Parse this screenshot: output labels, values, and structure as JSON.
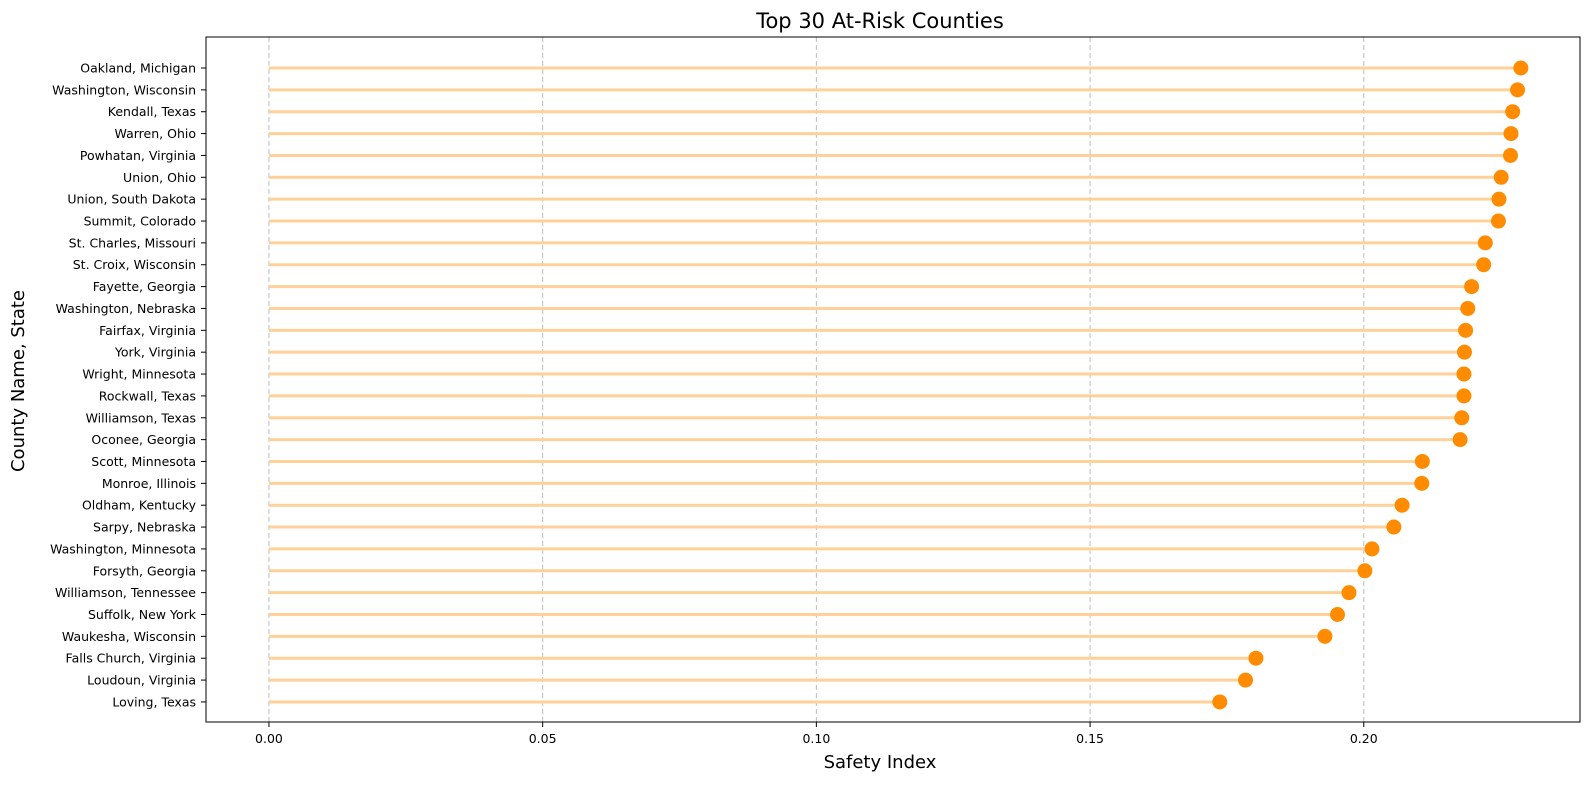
{
  "chart_data": {
    "type": "lollipop",
    "orientation": "horizontal",
    "title": "Top 30 At-Risk Counties",
    "xlabel": "Safety Index",
    "ylabel": "County Name, State",
    "xlim": [
      -0.0115,
      0.2395
    ],
    "xticks": [
      "0.00",
      "0.05",
      "0.10",
      "0.15",
      "0.20"
    ],
    "xtick_values": [
      0,
      0.05,
      0.1,
      0.15,
      0.2
    ],
    "grid": "x-dashed",
    "colors": {
      "stem": "#ffd199",
      "marker": "#ff8c00",
      "grid": "#bdbdbd"
    },
    "categories": [
      "Oakland, Michigan",
      "Washington, Wisconsin",
      "Kendall, Texas",
      "Warren, Ohio",
      "Powhatan, Virginia",
      "Union, Ohio",
      "Union, South Dakota",
      "Summit, Colorado",
      "St. Charles, Missouri",
      "St. Croix, Wisconsin",
      "Fayette, Georgia",
      "Washington, Nebraska",
      "Fairfax, Virginia",
      "York, Virginia",
      "Wright, Minnesota",
      "Rockwall, Texas",
      "Williamson, Texas",
      "Oconee, Georgia",
      "Scott, Minnesota",
      "Monroe, Illinois",
      "Oldham, Kentucky",
      "Sarpy, Nebraska",
      "Washington, Minnesota",
      "Forsyth, Georgia",
      "Williamson, Tennessee",
      "Suffolk, New York",
      "Waukesha, Wisconsin",
      "Falls Church, Virginia",
      "Loudoun, Virginia",
      "Loving, Texas"
    ],
    "values": [
      0.2287,
      0.2281,
      0.2272,
      0.2269,
      0.2268,
      0.2251,
      0.2247,
      0.2246,
      0.2222,
      0.2219,
      0.2197,
      0.219,
      0.2186,
      0.2184,
      0.2183,
      0.2183,
      0.2179,
      0.2176,
      0.2107,
      0.2106,
      0.207,
      0.2055,
      0.2015,
      0.2002,
      0.1973,
      0.1952,
      0.1929,
      0.1803,
      0.1784,
      0.1737
    ]
  }
}
